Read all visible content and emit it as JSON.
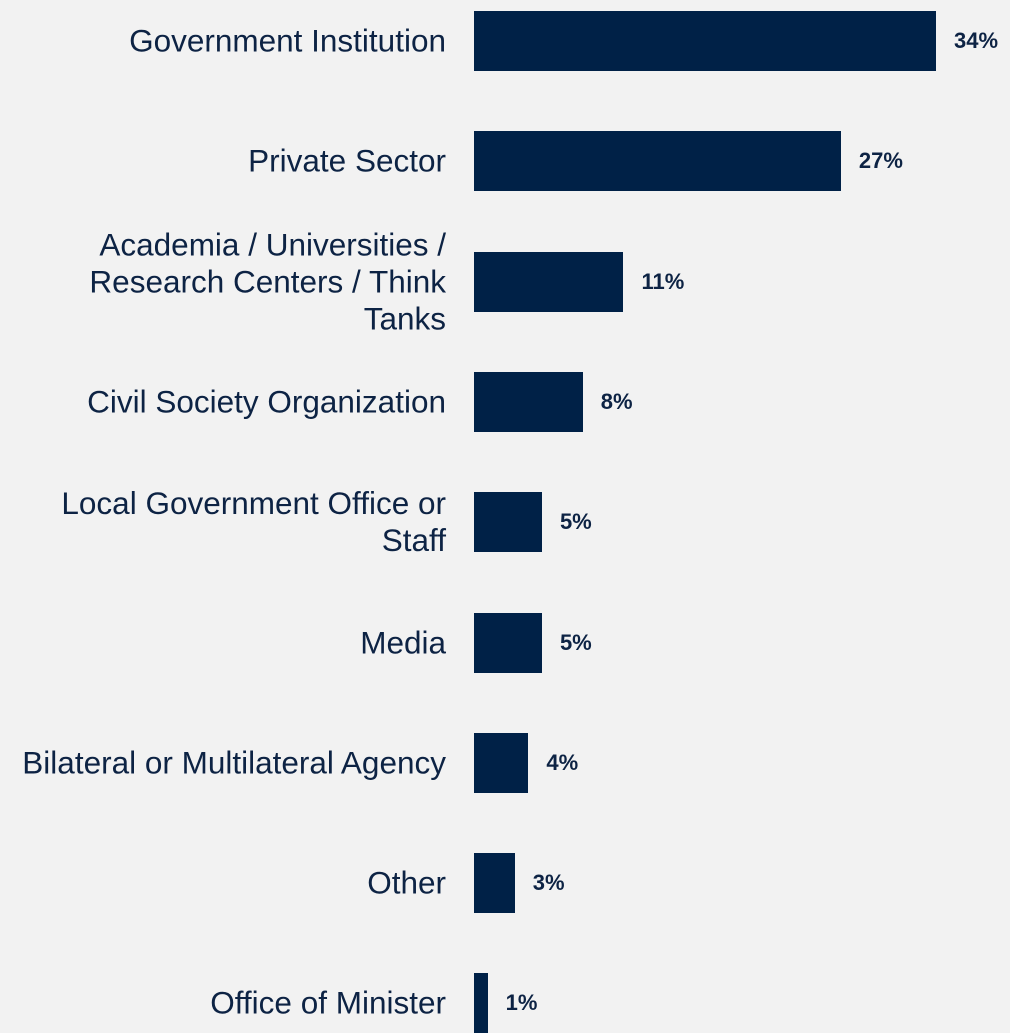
{
  "chart_data": {
    "type": "barh",
    "categories": [
      "Government Institution",
      "Private Sector",
      "Academia / Universities / Research Centers / Think Tanks",
      "Civil Society Organization",
      "Local Government Office or Staff",
      "Media",
      "Bilateral or Multilateral Agency",
      "Other",
      "Office of Minister"
    ],
    "values": [
      34,
      27,
      11,
      8,
      5,
      5,
      4,
      3,
      1
    ],
    "value_labels": [
      "34%",
      "27%",
      "11%",
      "8%",
      "5%",
      "5%",
      "4%",
      "3%",
      "1%"
    ],
    "color": "#002147"
  }
}
